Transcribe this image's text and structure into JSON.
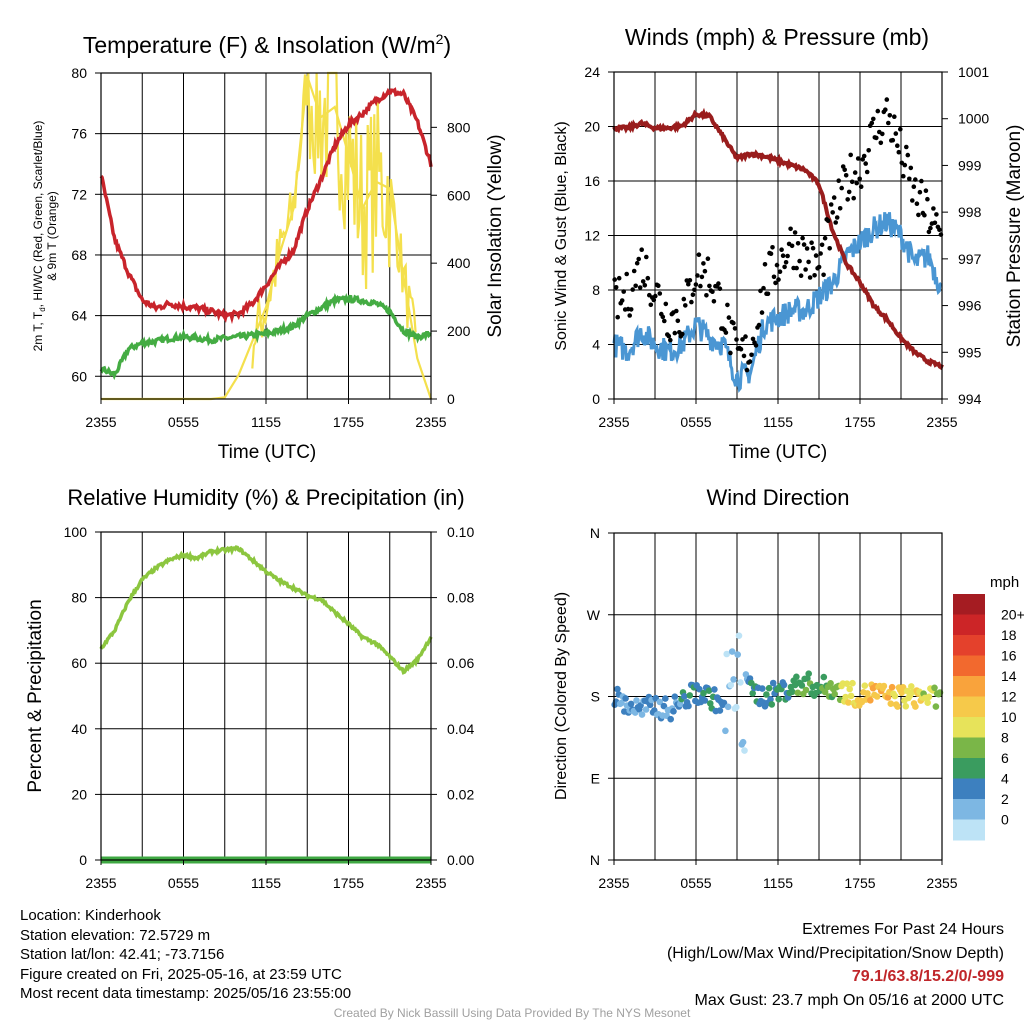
{
  "panels": {
    "temperature": {
      "title_main": "Temperature (F) & Insolation (W/m",
      "title_sup": "2",
      "title_end": ")",
      "left_ylabel_line1": "2m T, T",
      "left_ylabel_sub": "d",
      "left_ylabel_line1_end": ", HI/WC (Red, Green, Scarlet/Blue)",
      "left_ylabel_line2": "& 9m T (Orange)",
      "right_ylabel": "Solar Insolation (Yellow)",
      "xlabel": "Time (UTC)"
    },
    "winds": {
      "title": "Winds (mph) & Pressure (mb)",
      "left_ylabel": "Sonic Wind & Gust (Blue, Black)",
      "right_ylabel": "Station Pressure (Maroon)",
      "xlabel": "Time (UTC)"
    },
    "humidity": {
      "title": "Relative Humidity (%) & Precipitation (in)",
      "left_ylabel": "Percent & Precipitation"
    },
    "direction": {
      "title": "Wind Direction",
      "left_ylabel": "Direction (Colored By Speed)",
      "legend_title": "mph",
      "legend_labels": [
        "20+",
        "18",
        "16",
        "14",
        "12",
        "10",
        "8",
        "6",
        "4",
        "2",
        "0"
      ],
      "legend_colors": [
        "#a51c22",
        "#cc2527",
        "#e4412c",
        "#f2692e",
        "#f9a33c",
        "#f6c94a",
        "#e7e35a",
        "#7ab648",
        "#3a9c5f",
        "#3d80bf",
        "#7db7e3",
        "#bde3f6"
      ]
    }
  },
  "info": {
    "location": "Location: Kinderhook",
    "elevation": "Station elevation: 72.5729 m",
    "latlon": "Station lat/lon: 42.41; -73.7156",
    "created": "Figure created on Fri, 2025-05-16, at 23:59 UTC",
    "recent": "Most recent data timestamp: 2025/05/16 23:55:00"
  },
  "extremes": {
    "title": "Extremes For Past 24 Hours",
    "subtitle": "(High/Low/Max Wind/Precipitation/Snow Depth)",
    "values": "79.1/63.8/15.2/0/-999",
    "max_gust": "Max Gust: 23.7 mph On 05/16 at 2000 UTC"
  },
  "credit": "Created By Nick Bassill Using Data Provided By The NYS Mesonet",
  "chart_data": [
    {
      "type": "line",
      "title": "Temperature (F) & Insolation (W/m2)",
      "xlabel": "Time (UTC)",
      "ylabel": "2m T, Td, HI/WC (Red, Green, Scarlet/Blue) & 9m T (Orange)",
      "y2label": "Solar Insolation (Yellow)",
      "xticks": [
        "2355",
        "0555",
        "1155",
        "1755",
        "2355"
      ],
      "x_hours_since_2355": [
        0,
        1,
        2,
        3,
        4,
        5,
        6,
        7,
        8,
        9,
        10,
        11,
        12,
        13,
        14,
        15,
        16,
        17,
        18,
        19,
        20,
        21,
        22,
        23,
        24
      ],
      "ylim": [
        58.5,
        80
      ],
      "yticks": [
        60,
        64,
        68,
        72,
        76,
        80
      ],
      "y2lim": [
        0,
        960
      ],
      "y2ticks": [
        0,
        200,
        400,
        600,
        800
      ],
      "series": [
        {
          "name": "2m T",
          "color": "#c8242b",
          "axis": "left",
          "values": [
            73.3,
            69.0,
            66.8,
            65.0,
            64.5,
            64.8,
            64.6,
            64.5,
            64.3,
            64.0,
            64.1,
            64.8,
            66.0,
            67.3,
            68.3,
            71.0,
            73.0,
            75.2,
            76.6,
            77.3,
            78.2,
            78.8,
            78.6,
            76.8,
            74.0
          ]
        },
        {
          "name": "Td",
          "color": "#44ac43",
          "axis": "left",
          "values": [
            60.5,
            60.1,
            61.8,
            62.2,
            62.3,
            62.5,
            62.6,
            62.5,
            62.4,
            62.5,
            62.6,
            62.7,
            62.8,
            63.0,
            63.3,
            64.0,
            64.5,
            65.0,
            65.1,
            65.0,
            64.8,
            64.3,
            63.0,
            62.6,
            62.8
          ]
        },
        {
          "name": "Solar Insolation",
          "color": "#f4e04d",
          "axis": "right",
          "values": [
            0,
            0,
            0,
            0,
            0,
            0,
            0,
            0,
            0,
            5,
            70,
            170,
            270,
            430,
            560,
            950,
            830,
            860,
            720,
            560,
            640,
            620,
            360,
            120,
            0
          ]
        }
      ]
    },
    {
      "type": "line",
      "title": "Winds (mph) & Pressure (mb)",
      "xlabel": "Time (UTC)",
      "ylabel": "Sonic Wind & Gust (Blue, Black)",
      "y2label": "Station Pressure (Maroon)",
      "xticks": [
        "2355",
        "0555",
        "1155",
        "1755",
        "2355"
      ],
      "x_hours_since_2355": [
        0,
        1,
        2,
        3,
        4,
        5,
        6,
        7,
        8,
        9,
        10,
        11,
        12,
        13,
        14,
        15,
        16,
        17,
        18,
        19,
        20,
        21,
        22,
        23,
        24
      ],
      "ylim": [
        0,
        24
      ],
      "yticks": [
        0,
        4,
        8,
        12,
        16,
        20,
        24
      ],
      "y2lim": [
        994,
        1001
      ],
      "y2ticks": [
        994,
        995,
        996,
        997,
        998,
        999,
        1000,
        1001
      ],
      "series": [
        {
          "name": "Sonic Wind",
          "color": "#4a96d3",
          "axis": "left",
          "values": [
            4.0,
            3.5,
            5.0,
            4.0,
            3.5,
            4.0,
            5.5,
            4.5,
            4.0,
            1.5,
            2.0,
            5.5,
            6.0,
            6.5,
            6.5,
            7.5,
            8.5,
            10.5,
            11.5,
            12.5,
            13.0,
            12.0,
            10.0,
            10.5,
            8.0
          ]
        },
        {
          "name": "Gust",
          "color": "#000000",
          "axis": "left",
          "values": [
            7.0,
            7.5,
            10.0,
            8.0,
            6.0,
            6.0,
            9.5,
            9.0,
            6.5,
            3.0,
            3.5,
            8.5,
            10.0,
            11.5,
            10.5,
            9.5,
            13.0,
            16.0,
            17.0,
            19.5,
            21.0,
            18.0,
            15.0,
            13.5,
            11.5
          ]
        },
        {
          "name": "Station Pressure",
          "color": "#991d1d",
          "axis": "right",
          "values": [
            999.8,
            999.8,
            999.9,
            999.8,
            999.8,
            999.85,
            1000.1,
            1000.05,
            999.6,
            999.15,
            999.25,
            999.2,
            999.1,
            999.0,
            998.9,
            998.6,
            997.6,
            996.9,
            996.5,
            996.0,
            995.7,
            995.3,
            995.0,
            994.8,
            994.7
          ]
        }
      ]
    },
    {
      "type": "line",
      "title": "Relative Humidity (%) & Precipitation (in)",
      "ylabel": "Percent & Precipitation",
      "xticks": [
        "2355",
        "0555",
        "1155",
        "1755",
        "2355"
      ],
      "x_hours_since_2355": [
        0,
        1,
        2,
        3,
        4,
        5,
        6,
        7,
        8,
        9,
        10,
        11,
        12,
        13,
        14,
        15,
        16,
        17,
        18,
        19,
        20,
        21,
        22,
        23,
        24
      ],
      "ylim": [
        0,
        100
      ],
      "yticks": [
        0,
        20,
        40,
        60,
        80,
        100
      ],
      "y2lim": [
        0,
        0.1
      ],
      "y2ticks": [
        0.0,
        0.02,
        0.04,
        0.06,
        0.08,
        0.1
      ],
      "series": [
        {
          "name": "Relative Humidity",
          "color": "#8cc63f",
          "axis": "left",
          "values": [
            64.5,
            70.0,
            79.0,
            85.5,
            89.0,
            91.5,
            93.0,
            92.0,
            94.0,
            94.5,
            95.0,
            91.5,
            88.0,
            85.0,
            83.0,
            80.5,
            79.5,
            75.5,
            72.0,
            68.0,
            66.0,
            62.0,
            57.5,
            61.0,
            68.0
          ]
        },
        {
          "name": "Precipitation",
          "color": "#3fa843",
          "axis": "right",
          "values": [
            0,
            0,
            0,
            0,
            0,
            0,
            0,
            0,
            0,
            0,
            0,
            0,
            0,
            0,
            0,
            0,
            0,
            0,
            0,
            0,
            0,
            0,
            0,
            0,
            0
          ]
        }
      ]
    },
    {
      "type": "scatter",
      "title": "Wind Direction",
      "ylabel": "Direction (Colored By Speed)",
      "xticks": [
        "2355",
        "0555",
        "1155",
        "1755",
        "2355"
      ],
      "yticks": [
        "N",
        "E",
        "S",
        "W",
        "N"
      ],
      "ylim_degrees": [
        0,
        360
      ],
      "colorbar_label": "mph",
      "x_hours_since_2355": [
        0,
        1,
        2,
        3,
        4,
        5,
        6,
        7,
        8,
        8.4,
        8.6,
        9,
        9.4,
        10,
        11,
        12,
        13,
        14,
        15,
        16,
        17,
        18,
        19,
        20,
        21,
        22,
        23,
        24
      ],
      "direction_deg": [
        180,
        170,
        165,
        170,
        165,
        175,
        185,
        180,
        170,
        115,
        250,
        175,
        230,
        185,
        180,
        185,
        190,
        195,
        190,
        190,
        185,
        180,
        185,
        180,
        180,
        180,
        180,
        175
      ],
      "speed_mph": [
        4,
        4,
        4,
        5,
        4,
        5,
        6,
        7,
        4,
        1,
        1,
        2,
        1,
        5,
        6,
        6,
        7,
        8,
        7,
        9,
        11,
        12,
        14,
        13,
        12,
        11,
        11,
        8
      ]
    }
  ]
}
